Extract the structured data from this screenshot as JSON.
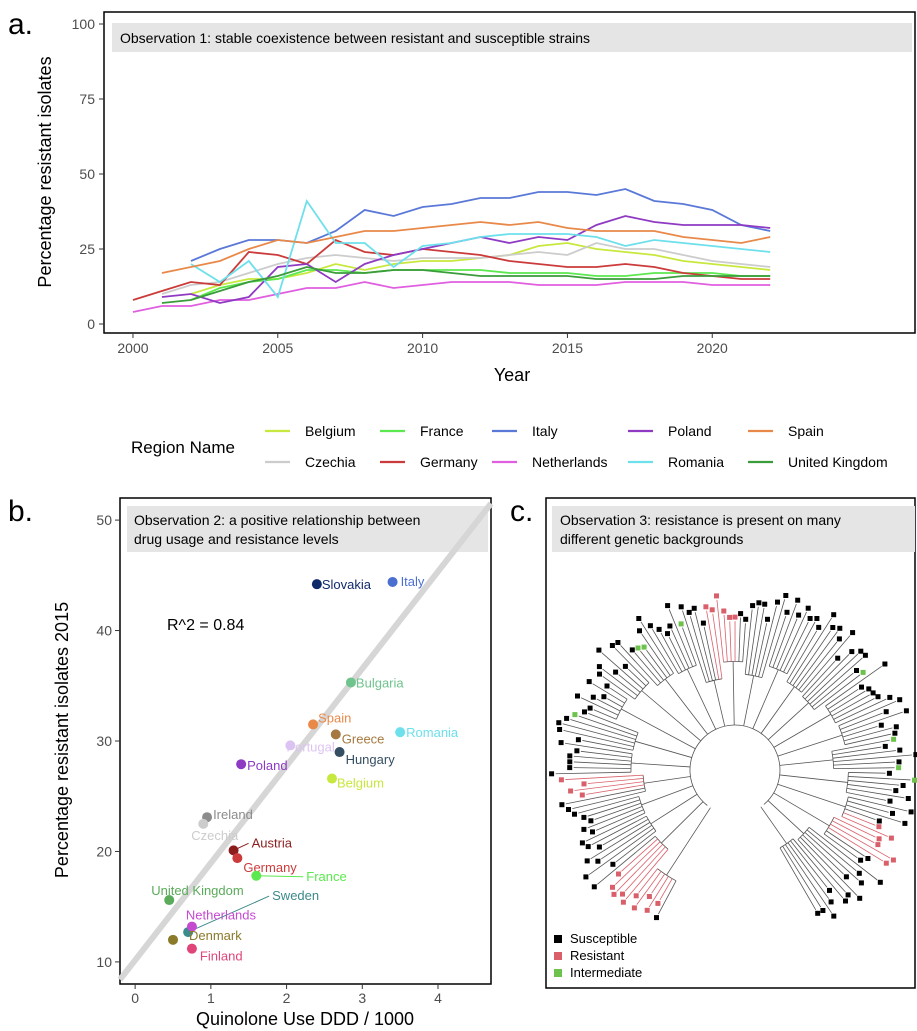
{
  "chart_data": [
    {
      "panel": "a.",
      "type": "line",
      "banner": "Observation 1: stable coexistence between resistant and susceptible strains",
      "xlabel": "Year",
      "ylabel": "Percentage resistant isolates",
      "xlim": [
        1999,
        2027
      ],
      "ylim": [
        -3,
        104
      ],
      "x_ticks": [
        "2000",
        "2005",
        "2010",
        "2015",
        "2020"
      ],
      "y_ticks": [
        "0",
        "25",
        "50",
        "75",
        "100"
      ],
      "grid": false,
      "legend": {
        "title": "Region Name",
        "placement": "bottom",
        "entries": [
          "Belgium",
          "France",
          "Italy",
          "Poland",
          "Spain",
          "Czechia",
          "Germany",
          "Netherlands",
          "Romania",
          "United Kingdom"
        ]
      },
      "series": [
        {
          "name": "Belgium",
          "color": "#c7e83d",
          "x": [
            2002,
            2003,
            2004,
            2005,
            2006,
            2007,
            2008,
            2009,
            2010,
            2011,
            2012,
            2013,
            2014,
            2015,
            2016,
            2017,
            2018,
            2019,
            2020,
            2021,
            2022
          ],
          "values": [
            10,
            13,
            15,
            15,
            17,
            20,
            18,
            20,
            21,
            21,
            22,
            23,
            26,
            27,
            25,
            24,
            23,
            21,
            20,
            19,
            18
          ]
        },
        {
          "name": "Czechia",
          "color": "#cccccc",
          "x": [
            2001,
            2002,
            2003,
            2004,
            2005,
            2006,
            2007,
            2008,
            2009,
            2010,
            2011,
            2012,
            2013,
            2014,
            2015,
            2016,
            2017,
            2018,
            2019,
            2020,
            2021,
            2022
          ],
          "values": [
            10,
            13,
            14,
            17,
            20,
            22,
            23,
            22,
            21,
            22,
            22,
            22,
            23,
            24,
            23,
            27,
            25,
            25,
            23,
            21,
            20,
            19
          ]
        },
        {
          "name": "France",
          "color": "#5ce84f",
          "x": [
            2002,
            2003,
            2004,
            2005,
            2006,
            2007,
            2008,
            2009,
            2010,
            2011,
            2012,
            2013,
            2014,
            2015,
            2016,
            2017,
            2018,
            2019,
            2020,
            2021,
            2022
          ],
          "values": [
            8,
            12,
            14,
            15,
            18,
            18,
            17,
            18,
            18,
            18,
            18,
            17,
            17,
            17,
            16,
            16,
            17,
            17,
            17,
            16,
            16
          ]
        },
        {
          "name": "Germany",
          "color": "#cc3b3b",
          "x": [
            2000,
            2001,
            2002,
            2003,
            2004,
            2005,
            2006,
            2007,
            2008,
            2009,
            2010,
            2011,
            2012,
            2013,
            2014,
            2015,
            2016,
            2017,
            2018,
            2019,
            2020,
            2021,
            2022
          ],
          "values": [
            8,
            11,
            14,
            13,
            24,
            23,
            20,
            28,
            24,
            23,
            25,
            24,
            23,
            21,
            20,
            19,
            19,
            20,
            19,
            17,
            16,
            15,
            15
          ]
        },
        {
          "name": "Italy",
          "color": "#5a78d8",
          "x": [
            2002,
            2003,
            2004,
            2005,
            2006,
            2007,
            2008,
            2009,
            2010,
            2011,
            2012,
            2013,
            2014,
            2015,
            2016,
            2017,
            2018,
            2019,
            2020,
            2021,
            2022
          ],
          "values": [
            21,
            25,
            28,
            28,
            27,
            31,
            38,
            36,
            39,
            40,
            42,
            42,
            44,
            44,
            43,
            45,
            41,
            40,
            38,
            33,
            31
          ]
        },
        {
          "name": "Netherlands",
          "color": "#e05fe0",
          "x": [
            2000,
            2001,
            2002,
            2003,
            2004,
            2005,
            2006,
            2007,
            2008,
            2009,
            2010,
            2011,
            2012,
            2013,
            2014,
            2015,
            2016,
            2017,
            2018,
            2019,
            2020,
            2021,
            2022
          ],
          "values": [
            4,
            6,
            6,
            8,
            8,
            10,
            12,
            12,
            14,
            12,
            13,
            14,
            14,
            14,
            13,
            13,
            13,
            14,
            14,
            14,
            13,
            13,
            13
          ]
        },
        {
          "name": "Poland",
          "color": "#8e3ac2",
          "x": [
            2001,
            2002,
            2003,
            2004,
            2005,
            2006,
            2007,
            2008,
            2009,
            2010,
            2011,
            2012,
            2013,
            2014,
            2015,
            2016,
            2017,
            2018,
            2019,
            2020,
            2021,
            2022
          ],
          "values": [
            9,
            10,
            7,
            9,
            19,
            20,
            14,
            20,
            23,
            25,
            27,
            29,
            27,
            29,
            28,
            33,
            36,
            34,
            33,
            33,
            33,
            32
          ]
        },
        {
          "name": "Romania",
          "color": "#6de0ec",
          "x": [
            2002,
            2003,
            2004,
            2005,
            2006,
            2007,
            2008,
            2009,
            2010,
            2011,
            2012,
            2013,
            2014,
            2015,
            2016,
            2017,
            2018,
            2019,
            2020,
            2021,
            2022
          ],
          "values": [
            20,
            14,
            21,
            9,
            41,
            27,
            27,
            19,
            26,
            27,
            29,
            30,
            30,
            30,
            29,
            26,
            28,
            27,
            26,
            25,
            24
          ]
        },
        {
          "name": "Spain",
          "color": "#e8894a",
          "x": [
            2001,
            2002,
            2003,
            2004,
            2005,
            2006,
            2007,
            2008,
            2009,
            2010,
            2011,
            2012,
            2013,
            2014,
            2015,
            2016,
            2017,
            2018,
            2019,
            2020,
            2021,
            2022
          ],
          "values": [
            17,
            19,
            21,
            25,
            28,
            27,
            29,
            31,
            31,
            32,
            33,
            34,
            33,
            34,
            32,
            31,
            31,
            31,
            29,
            28,
            27,
            29
          ]
        },
        {
          "name": "United Kingdom",
          "color": "#3a9c3a",
          "x": [
            2001,
            2002,
            2003,
            2004,
            2005,
            2006,
            2007,
            2008,
            2009,
            2010,
            2011,
            2012,
            2013,
            2014,
            2015,
            2016,
            2017,
            2018,
            2019,
            2020,
            2021,
            2022
          ],
          "values": [
            7,
            8,
            11,
            14,
            16,
            19,
            17,
            17,
            18,
            18,
            17,
            16,
            16,
            16,
            16,
            15,
            15,
            15,
            16,
            16,
            16,
            16
          ]
        }
      ]
    },
    {
      "panel": "b.",
      "type": "scatter",
      "banner": [
        "Observation 2: a positive relationship between",
        "drug usage and resistance levels"
      ],
      "xlabel": "Quinolone Use DDD / 1000",
      "ylabel": "Percentage resistant isolates 2015",
      "xlim": [
        -0.2,
        4.7
      ],
      "ylim": [
        8,
        52
      ],
      "x_ticks": [
        "0",
        "1",
        "2",
        "3",
        "4"
      ],
      "y_ticks": [
        "10",
        "20",
        "30",
        "40",
        "50"
      ],
      "annotation": "R^2 = 0.84",
      "fit_line": {
        "x": [
          -0.2,
          4.7
        ],
        "y": [
          8.4,
          51.5
        ],
        "color": "#d6d6d6"
      },
      "points": [
        {
          "label": "Slovakia",
          "x": 2.4,
          "y": 44.2,
          "color": "#0f2a6b"
        },
        {
          "label": "Italy",
          "x": 3.4,
          "y": 44.4,
          "color": "#4a6fd1"
        },
        {
          "label": "Bulgaria",
          "x": 2.85,
          "y": 35.3,
          "color": "#6fc38c"
        },
        {
          "label": "Spain",
          "x": 2.35,
          "y": 31.5,
          "color": "#e8894a"
        },
        {
          "label": "Greece",
          "x": 2.65,
          "y": 30.6,
          "color": "#a5793f"
        },
        {
          "label": "Romania",
          "x": 3.5,
          "y": 30.8,
          "color": "#6de0ec"
        },
        {
          "label": "Portugal",
          "x": 2.05,
          "y": 29.6,
          "color": "#dcc4f2"
        },
        {
          "label": "Hungary",
          "x": 2.7,
          "y": 29.0,
          "color": "#344e63"
        },
        {
          "label": "Poland",
          "x": 1.4,
          "y": 27.9,
          "color": "#8e3ac2"
        },
        {
          "label": "Belgium",
          "x": 2.6,
          "y": 26.6,
          "color": "#c7e83d"
        },
        {
          "label": "Ireland",
          "x": 0.95,
          "y": 23.1,
          "color": "#8c8c8c"
        },
        {
          "label": "Czechia",
          "x": 0.9,
          "y": 22.5,
          "color": "#cccccc"
        },
        {
          "label": "Austria",
          "x": 1.3,
          "y": 20.1,
          "color": "#8b1d1d"
        },
        {
          "label": "Germany",
          "x": 1.35,
          "y": 19.4,
          "color": "#cc3b3b"
        },
        {
          "label": "France",
          "x": 1.6,
          "y": 17.8,
          "color": "#5ce84f"
        },
        {
          "label": "United Kingdom",
          "x": 0.45,
          "y": 15.6,
          "color": "#5aab5a"
        },
        {
          "label": "Sweden",
          "x": 0.7,
          "y": 12.7,
          "color": "#3d8a8a"
        },
        {
          "label": "Netherlands",
          "x": 0.75,
          "y": 13.2,
          "color": "#c44bd0"
        },
        {
          "label": "Denmark",
          "x": 0.5,
          "y": 12.0,
          "color": "#8a7a2a"
        },
        {
          "label": "Finland",
          "x": 0.75,
          "y": 11.2,
          "color": "#e0457a"
        }
      ]
    },
    {
      "panel": "c.",
      "type": "tree",
      "banner": [
        "Observation 3: resistance is present on many",
        "different genetic backgrounds"
      ],
      "legend": [
        {
          "label": "Susceptible",
          "color": "#000000"
        },
        {
          "label": "Resistant",
          "color": "#d9606a"
        },
        {
          "label": "Intermediate",
          "color": "#6cc24a"
        }
      ]
    }
  ]
}
